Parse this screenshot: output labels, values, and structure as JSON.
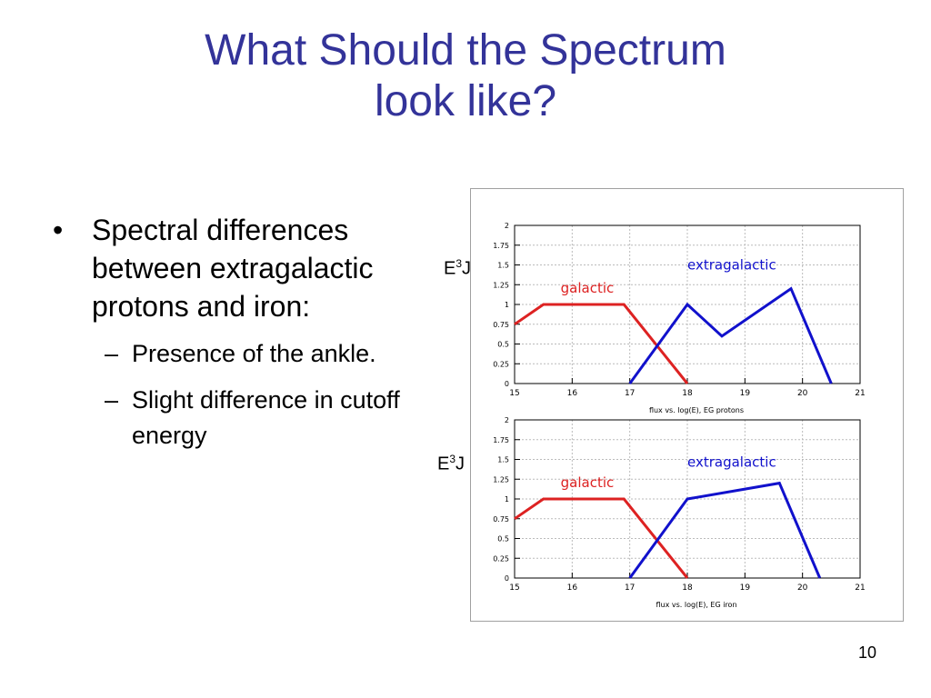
{
  "slide": {
    "title_line1": "What Should the Spectrum",
    "title_line2": "look like?",
    "bullet": "Spectral differences between extragalactic protons and iron:",
    "sub_bullets": [
      "Presence of the ankle.",
      "Slight difference in cutoff energy"
    ],
    "page_number": "10",
    "ylabel_base": "E",
    "ylabel_exp": "3",
    "ylabel_suffix": "J"
  },
  "colors": {
    "title": "#333399",
    "galactic": "#dd2222",
    "extragalactic": "#1111cc",
    "grid": "#bbbbbb"
  },
  "chart_data": [
    {
      "type": "line",
      "xlabel": "flux vs. log(E), EG protons",
      "ylabel": "E3J",
      "xlim": [
        15,
        21
      ],
      "ylim": [
        0,
        2
      ],
      "xticks": [
        "15",
        "16",
        "17",
        "18",
        "19",
        "20",
        "21"
      ],
      "yticks": [
        "0",
        "0.25",
        "0.5",
        "0.75",
        "1",
        "1.25",
        "1.5",
        "1.75",
        "2"
      ],
      "grid": true,
      "series": [
        {
          "name": "galactic",
          "color": "#dd2222",
          "x": [
            15,
            15.5,
            16.9,
            18
          ],
          "y": [
            0.75,
            1,
            1,
            0
          ]
        },
        {
          "name": "extragalactic",
          "color": "#1111cc",
          "x": [
            17,
            18,
            18.6,
            19.8,
            20.5
          ],
          "y": [
            0,
            1,
            0.6,
            1.2,
            0
          ]
        }
      ],
      "annotations": [
        {
          "text": "galactic",
          "x": 15.8,
          "y": 1.15,
          "color": "#dd2222"
        },
        {
          "text": "extragalactic",
          "x": 18.0,
          "y": 1.44,
          "color": "#1111cc"
        }
      ]
    },
    {
      "type": "line",
      "xlabel": "flux vs. log(E), EG iron",
      "ylabel": "E3J",
      "xlim": [
        15,
        21
      ],
      "ylim": [
        0,
        2
      ],
      "xticks": [
        "15",
        "16",
        "17",
        "18",
        "19",
        "20",
        "21"
      ],
      "yticks": [
        "0",
        "0.25",
        "0.5",
        "0.75",
        "1",
        "1.25",
        "1.5",
        "1.75",
        "2"
      ],
      "grid": true,
      "series": [
        {
          "name": "galactic",
          "color": "#dd2222",
          "x": [
            15,
            15.5,
            16.9,
            18
          ],
          "y": [
            0.75,
            1,
            1,
            0
          ]
        },
        {
          "name": "extragalactic",
          "color": "#1111cc",
          "x": [
            17,
            18,
            19.6,
            20.3
          ],
          "y": [
            0,
            1,
            1.2,
            0
          ]
        }
      ],
      "annotations": [
        {
          "text": "galactic",
          "x": 15.8,
          "y": 1.15,
          "color": "#dd2222"
        },
        {
          "text": "extragalactic",
          "x": 18.0,
          "y": 1.41,
          "color": "#1111cc"
        }
      ]
    }
  ]
}
